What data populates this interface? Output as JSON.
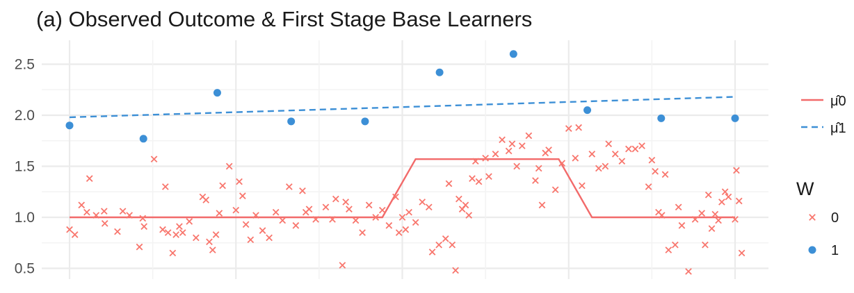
{
  "chart_data": {
    "type": "scatter",
    "title": "(a) Observed Outcome & First Stage Base Learners",
    "xlabel": "",
    "ylabel": "",
    "xlim": [
      -0.04,
      1.04
    ],
    "ylim": [
      0.42,
      2.6
    ],
    "y_ticks": [
      0.5,
      1.0,
      1.5,
      2.0,
      2.5
    ],
    "y_tick_labels": [
      "0.5",
      "1.0",
      "1.5",
      "2.0",
      "2.5"
    ],
    "grid": true,
    "legend_placement": "right",
    "colors": {
      "w0": "#F8766D",
      "w1": "#3C8FD6",
      "mu0": "#F26A6A",
      "mu1": "#3C8FD6",
      "grid": "#ebebeb"
    },
    "scatter_series": [
      {
        "name": "0",
        "marker": "x",
        "points": [
          [
            0.0,
            0.88
          ],
          [
            0.008,
            0.83
          ],
          [
            0.018,
            1.12
          ],
          [
            0.026,
            1.05
          ],
          [
            0.03,
            1.38
          ],
          [
            0.04,
            1.02
          ],
          [
            0.052,
            1.06
          ],
          [
            0.053,
            0.94
          ],
          [
            0.072,
            0.86
          ],
          [
            0.08,
            1.06
          ],
          [
            0.09,
            1.02
          ],
          [
            0.105,
            0.71
          ],
          [
            0.11,
            0.99
          ],
          [
            0.112,
            0.91
          ],
          [
            0.127,
            1.57
          ],
          [
            0.14,
            0.88
          ],
          [
            0.144,
            1.3
          ],
          [
            0.148,
            0.85
          ],
          [
            0.155,
            0.65
          ],
          [
            0.16,
            0.83
          ],
          [
            0.165,
            0.91
          ],
          [
            0.17,
            0.85
          ],
          [
            0.18,
            0.96
          ],
          [
            0.19,
            0.8
          ],
          [
            0.2,
            1.2
          ],
          [
            0.205,
            1.17
          ],
          [
            0.21,
            0.76
          ],
          [
            0.215,
            0.68
          ],
          [
            0.22,
            0.83
          ],
          [
            0.225,
            1.04
          ],
          [
            0.23,
            1.31
          ],
          [
            0.24,
            1.5
          ],
          [
            0.25,
            1.07
          ],
          [
            0.255,
            1.35
          ],
          [
            0.26,
            1.21
          ],
          [
            0.265,
            0.93
          ],
          [
            0.272,
            0.78
          ],
          [
            0.28,
            1.02
          ],
          [
            0.29,
            0.87
          ],
          [
            0.3,
            0.8
          ],
          [
            0.31,
            1.05
          ],
          [
            0.32,
            0.97
          ],
          [
            0.33,
            1.3
          ],
          [
            0.34,
            0.92
          ],
          [
            0.35,
            1.26
          ],
          [
            0.355,
            1.05
          ],
          [
            0.36,
            1.08
          ],
          [
            0.37,
            0.98
          ],
          [
            0.385,
            1.1
          ],
          [
            0.395,
            0.98
          ],
          [
            0.4,
            1.18
          ],
          [
            0.41,
            0.53
          ],
          [
            0.415,
            1.15
          ],
          [
            0.42,
            1.08
          ],
          [
            0.43,
            0.97
          ],
          [
            0.44,
            0.85
          ],
          [
            0.45,
            1.12
          ],
          [
            0.46,
            1.0
          ],
          [
            0.47,
            1.07
          ],
          [
            0.48,
            0.92
          ],
          [
            0.49,
            1.2
          ],
          [
            0.495,
            0.85
          ],
          [
            0.5,
            1.0
          ],
          [
            0.505,
            0.88
          ],
          [
            0.51,
            1.05
          ],
          [
            0.52,
            0.95
          ],
          [
            0.53,
            1.15
          ],
          [
            0.54,
            1.1
          ],
          [
            0.545,
            0.66
          ],
          [
            0.555,
            0.73
          ],
          [
            0.565,
            0.79
          ],
          [
            0.57,
            1.33
          ],
          [
            0.575,
            0.73
          ],
          [
            0.58,
            0.48
          ],
          [
            0.585,
            1.18
          ],
          [
            0.59,
            1.08
          ],
          [
            0.595,
            1.12
          ],
          [
            0.6,
            1.02
          ],
          [
            0.605,
            1.38
          ],
          [
            0.61,
            1.55
          ],
          [
            0.615,
            1.35
          ],
          [
            0.625,
            1.58
          ],
          [
            0.63,
            1.4
          ],
          [
            0.64,
            1.62
          ],
          [
            0.65,
            1.76
          ],
          [
            0.66,
            1.65
          ],
          [
            0.665,
            1.72
          ],
          [
            0.672,
            1.5
          ],
          [
            0.68,
            1.7
          ],
          [
            0.69,
            1.8
          ],
          [
            0.7,
            1.36
          ],
          [
            0.705,
            1.48
          ],
          [
            0.71,
            1.12
          ],
          [
            0.715,
            1.63
          ],
          [
            0.72,
            1.66
          ],
          [
            0.73,
            1.27
          ],
          [
            0.74,
            1.53
          ],
          [
            0.75,
            1.87
          ],
          [
            0.76,
            1.58
          ],
          [
            0.765,
            1.88
          ],
          [
            0.77,
            1.31
          ],
          [
            0.785,
            1.62
          ],
          [
            0.795,
            1.48
          ],
          [
            0.805,
            1.5
          ],
          [
            0.81,
            1.72
          ],
          [
            0.82,
            1.62
          ],
          [
            0.83,
            1.55
          ],
          [
            0.84,
            1.67
          ],
          [
            0.85,
            1.67
          ],
          [
            0.86,
            1.7
          ],
          [
            0.87,
            1.3
          ],
          [
            0.875,
            1.56
          ],
          [
            0.88,
            1.45
          ],
          [
            0.885,
            1.05
          ],
          [
            0.89,
            1.02
          ],
          [
            0.895,
            1.42
          ],
          [
            0.9,
            0.68
          ],
          [
            0.91,
            0.73
          ],
          [
            0.915,
            1.1
          ],
          [
            0.92,
            0.92
          ],
          [
            0.93,
            0.47
          ],
          [
            0.94,
            0.98
          ],
          [
            0.95,
            1.04
          ],
          [
            0.955,
            0.73
          ],
          [
            0.96,
            1.22
          ],
          [
            0.965,
            0.89
          ],
          [
            0.97,
            1.03
          ],
          [
            0.975,
            0.97
          ],
          [
            0.98,
            1.15
          ],
          [
            0.985,
            1.25
          ],
          [
            0.99,
            1.2
          ],
          [
            1.0,
            0.98
          ],
          [
            1.002,
            1.46
          ],
          [
            1.006,
            1.16
          ],
          [
            1.01,
            0.65
          ]
        ]
      },
      {
        "name": "1",
        "marker": "dot",
        "points": [
          [
            0.0,
            1.9
          ],
          [
            0.111,
            1.77
          ],
          [
            0.222,
            2.22
          ],
          [
            0.333,
            1.94
          ],
          [
            0.444,
            1.94
          ],
          [
            0.556,
            2.42
          ],
          [
            0.667,
            2.6
          ],
          [
            0.778,
            2.05
          ],
          [
            0.889,
            1.97
          ],
          [
            1.0,
            1.97
          ]
        ]
      }
    ],
    "line_series": [
      {
        "name": "μ̂0",
        "style": "solid",
        "points": [
          [
            0.0,
            1.0
          ],
          [
            0.47,
            1.0
          ],
          [
            0.52,
            1.57
          ],
          [
            0.735,
            1.57
          ],
          [
            0.785,
            1.0
          ],
          [
            1.0,
            1.0
          ]
        ]
      },
      {
        "name": "μ̂1",
        "style": "dashed",
        "points": [
          [
            0.0,
            1.98
          ],
          [
            1.0,
            2.18
          ]
        ]
      }
    ],
    "legend": {
      "lines": [
        "μ̂0",
        "μ̂1"
      ],
      "title": "W",
      "points": [
        "0",
        "1"
      ]
    }
  }
}
